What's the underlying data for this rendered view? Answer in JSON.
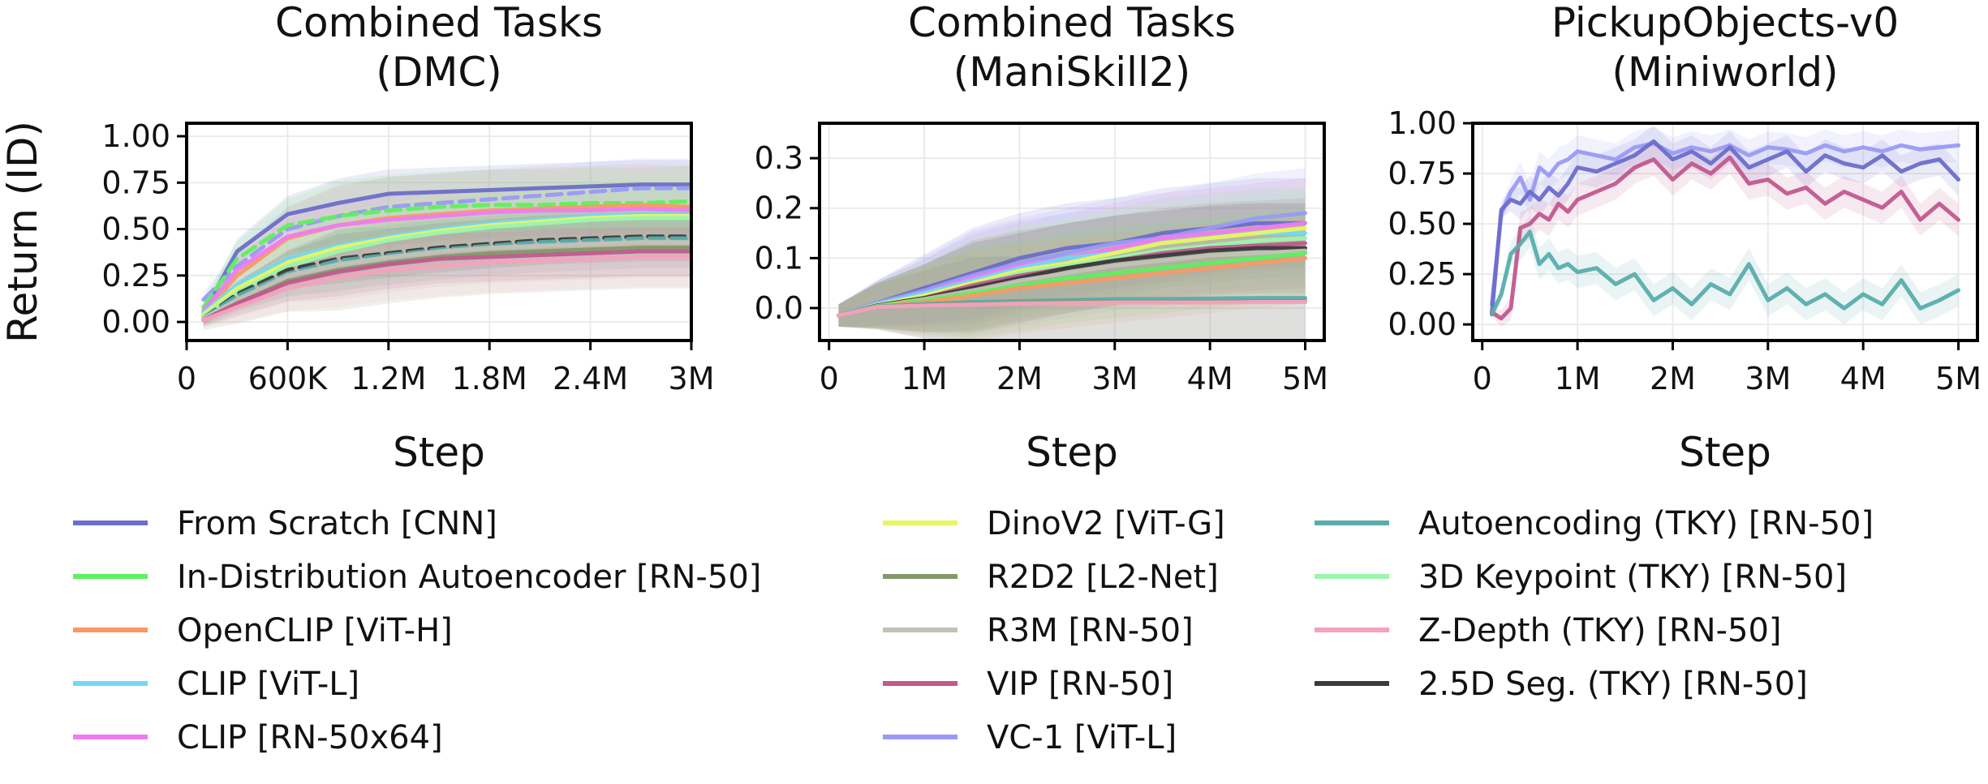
{
  "chart_data": [
    {
      "type": "line",
      "title": "Combined Tasks\n(DMC)",
      "xlabel": "Step",
      "ylabel": "Return (ID)",
      "xlim": [
        0,
        3000000
      ],
      "ylim": [
        -0.1,
        1.07
      ],
      "xticks": [
        0,
        600000,
        1200000,
        1800000,
        2400000,
        3000000
      ],
      "xtick_labels": [
        "0",
        "600K",
        "1.2M",
        "1.8M",
        "2.4M",
        "3M"
      ],
      "yticks": [
        0.0,
        0.25,
        0.5,
        0.75,
        1.0
      ],
      "ytick_labels": [
        "0.00",
        "0.25",
        "0.50",
        "0.75",
        "1.00"
      ],
      "grid": true,
      "shaded_band": true,
      "x": [
        100000,
        300000,
        600000,
        900000,
        1200000,
        1500000,
        1800000,
        2100000,
        2400000,
        2700000,
        3000000
      ],
      "series": [
        {
          "name": "From Scratch [CNN]",
          "values": [
            0.05,
            0.38,
            0.58,
            0.64,
            0.69,
            0.7,
            0.71,
            0.72,
            0.73,
            0.74,
            0.74
          ]
        },
        {
          "name": "VC-1 [ViT-L]",
          "values": [
            0.12,
            0.3,
            0.5,
            0.57,
            0.62,
            0.64,
            0.66,
            0.68,
            0.7,
            0.72,
            0.72
          ]
        },
        {
          "name": "In-Distribution Autoencoder [RN-50]",
          "values": [
            0.08,
            0.34,
            0.52,
            0.57,
            0.6,
            0.62,
            0.63,
            0.63,
            0.64,
            0.64,
            0.65
          ]
        },
        {
          "name": "OpenCLIP [ViT-H]",
          "values": [
            0.04,
            0.25,
            0.45,
            0.52,
            0.56,
            0.58,
            0.6,
            0.61,
            0.62,
            0.63,
            0.62
          ]
        },
        {
          "name": "CLIP [RN-50x64]",
          "values": [
            0.06,
            0.28,
            0.46,
            0.52,
            0.55,
            0.57,
            0.59,
            0.6,
            0.6,
            0.61,
            0.6
          ]
        },
        {
          "name": "CLIP [ViT-L]",
          "values": [
            0.05,
            0.2,
            0.34,
            0.41,
            0.46,
            0.5,
            0.53,
            0.55,
            0.57,
            0.58,
            0.58
          ]
        },
        {
          "name": "DinoV2 [ViT-G]",
          "values": [
            0.04,
            0.18,
            0.32,
            0.4,
            0.45,
            0.49,
            0.52,
            0.54,
            0.56,
            0.57,
            0.57
          ]
        },
        {
          "name": "3D Keypoint (TKY) [RN-50]",
          "values": [
            0.03,
            0.16,
            0.3,
            0.38,
            0.44,
            0.48,
            0.51,
            0.53,
            0.55,
            0.56,
            0.56
          ]
        },
        {
          "name": "2.5D Seg. (TKY) [RN-50]",
          "values": [
            0.02,
            0.15,
            0.28,
            0.34,
            0.37,
            0.4,
            0.42,
            0.44,
            0.45,
            0.46,
            0.46
          ]
        },
        {
          "name": "Autoencoding (TKY) [RN-50]",
          "values": [
            0.02,
            0.14,
            0.26,
            0.33,
            0.36,
            0.39,
            0.41,
            0.43,
            0.44,
            0.45,
            0.45
          ]
        },
        {
          "name": "R3M [RN-50]",
          "values": [
            0.02,
            0.12,
            0.25,
            0.31,
            0.35,
            0.38,
            0.4,
            0.41,
            0.42,
            0.43,
            0.43
          ]
        },
        {
          "name": "R2D2 [L2-Net]",
          "values": [
            0.01,
            0.1,
            0.22,
            0.28,
            0.32,
            0.35,
            0.37,
            0.38,
            0.39,
            0.4,
            0.4
          ]
        },
        {
          "name": "VIP [RN-50]",
          "values": [
            0.01,
            0.1,
            0.21,
            0.27,
            0.31,
            0.34,
            0.35,
            0.36,
            0.37,
            0.38,
            0.38
          ]
        },
        {
          "name": "Z-Depth (TKY) [RN-50]",
          "values": [
            0.01,
            0.08,
            0.18,
            0.24,
            0.28,
            0.3,
            0.32,
            0.33,
            0.34,
            0.35,
            0.35
          ]
        }
      ]
    },
    {
      "type": "line",
      "title": "Combined Tasks\n(ManiSkill2)",
      "xlabel": "Step",
      "ylabel": "",
      "xlim": [
        -100000,
        5200000
      ],
      "ylim": [
        -0.065,
        0.37
      ],
      "xticks": [
        0,
        1000000,
        2000000,
        3000000,
        4000000,
        5000000
      ],
      "xtick_labels": [
        "0",
        "1M",
        "2M",
        "3M",
        "4M",
        "5M"
      ],
      "yticks": [
        0.0,
        0.1,
        0.2,
        0.3
      ],
      "ytick_labels": [
        "0.0",
        "0.1",
        "0.2",
        "0.3"
      ],
      "grid": true,
      "shaded_band": true,
      "x": [
        100000,
        500000,
        1000000,
        1500000,
        2000000,
        2500000,
        3000000,
        3500000,
        4000000,
        4500000,
        5000000
      ],
      "series": [
        {
          "name": "From Scratch [CNN]",
          "values": [
            -0.015,
            0.01,
            0.04,
            0.07,
            0.1,
            0.12,
            0.13,
            0.15,
            0.16,
            0.17,
            0.17
          ]
        },
        {
          "name": "VC-1 [ViT-L]",
          "values": [
            -0.015,
            0.01,
            0.035,
            0.065,
            0.09,
            0.11,
            0.13,
            0.14,
            0.16,
            0.18,
            0.19
          ]
        },
        {
          "name": "CLIP [RN-50x64]",
          "values": [
            -0.015,
            0.008,
            0.03,
            0.06,
            0.085,
            0.1,
            0.12,
            0.14,
            0.15,
            0.16,
            0.17
          ]
        },
        {
          "name": "CLIP [ViT-L]",
          "values": [
            -0.015,
            0.008,
            0.03,
            0.055,
            0.08,
            0.1,
            0.11,
            0.13,
            0.14,
            0.15,
            0.15
          ]
        },
        {
          "name": "DinoV2 [ViT-G]",
          "values": [
            -0.015,
            0.006,
            0.025,
            0.05,
            0.075,
            0.09,
            0.11,
            0.13,
            0.14,
            0.15,
            0.16
          ]
        },
        {
          "name": "3D Keypoint (TKY) [RN-50]",
          "values": [
            -0.015,
            0.005,
            0.02,
            0.045,
            0.07,
            0.085,
            0.1,
            0.115,
            0.125,
            0.135,
            0.14
          ]
        },
        {
          "name": "VIP [RN-50]",
          "values": [
            -0.015,
            0.005,
            0.02,
            0.045,
            0.065,
            0.08,
            0.095,
            0.11,
            0.12,
            0.125,
            0.13
          ]
        },
        {
          "name": "2.5D Seg. (TKY) [RN-50]",
          "values": [
            -0.015,
            0.005,
            0.02,
            0.04,
            0.06,
            0.08,
            0.095,
            0.105,
            0.115,
            0.12,
            0.12
          ]
        },
        {
          "name": "R3M [RN-50]",
          "values": [
            -0.015,
            0.004,
            0.018,
            0.035,
            0.055,
            0.07,
            0.085,
            0.095,
            0.105,
            0.11,
            0.115
          ]
        },
        {
          "name": "In-Distribution Autoencoder [RN-50]",
          "values": [
            -0.015,
            0.004,
            0.015,
            0.03,
            0.045,
            0.06,
            0.07,
            0.08,
            0.09,
            0.1,
            0.11
          ]
        },
        {
          "name": "OpenCLIP [ViT-H]",
          "values": [
            -0.015,
            0.003,
            0.012,
            0.025,
            0.04,
            0.05,
            0.06,
            0.07,
            0.08,
            0.09,
            0.1
          ]
        },
        {
          "name": "Autoencoding (TKY) [RN-50]",
          "values": [
            -0.015,
            0.003,
            0.008,
            0.012,
            0.014,
            0.016,
            0.018,
            0.018,
            0.019,
            0.02,
            0.02
          ]
        },
        {
          "name": "R2D2 [L2-Net]",
          "values": [
            -0.015,
            0.002,
            0.006,
            0.009,
            0.011,
            0.012,
            0.013,
            0.013,
            0.013,
            0.014,
            0.014
          ]
        },
        {
          "name": "Z-Depth (TKY) [RN-50]",
          "values": [
            -0.015,
            0.002,
            0.005,
            0.007,
            0.009,
            0.01,
            0.011,
            0.011,
            0.011,
            0.012,
            0.012
          ]
        }
      ]
    },
    {
      "type": "line",
      "title": "PickupObjects-v0\n(Miniworld)",
      "xlabel": "Step",
      "ylabel": "",
      "xlim": [
        -100000,
        5200000
      ],
      "ylim": [
        -0.08,
        1.0
      ],
      "xticks": [
        0,
        1000000,
        2000000,
        3000000,
        4000000,
        5000000
      ],
      "xtick_labels": [
        "0",
        "1M",
        "2M",
        "3M",
        "4M",
        "5M"
      ],
      "yticks": [
        0.0,
        0.25,
        0.5,
        0.75,
        1.0
      ],
      "ytick_labels": [
        "0.00",
        "0.25",
        "0.50",
        "0.75",
        "1.00"
      ],
      "grid": true,
      "shaded_band": true,
      "x": [
        100000,
        200000,
        300000,
        400000,
        500000,
        600000,
        700000,
        800000,
        900000,
        1000000,
        1200000,
        1400000,
        1600000,
        1800000,
        2000000,
        2200000,
        2400000,
        2600000,
        2800000,
        3000000,
        3200000,
        3400000,
        3600000,
        3800000,
        4000000,
        4200000,
        4400000,
        4600000,
        4800000,
        5000000
      ],
      "series": [
        {
          "name": "VC-1 [ViT-L]",
          "values": [
            0.1,
            0.55,
            0.66,
            0.73,
            0.62,
            0.78,
            0.74,
            0.8,
            0.82,
            0.86,
            0.84,
            0.82,
            0.88,
            0.9,
            0.85,
            0.88,
            0.86,
            0.89,
            0.84,
            0.88,
            0.87,
            0.85,
            0.89,
            0.86,
            0.88,
            0.86,
            0.89,
            0.87,
            0.88,
            0.89
          ]
        },
        {
          "name": "From Scratch [CNN]",
          "values": [
            0.05,
            0.57,
            0.62,
            0.6,
            0.66,
            0.62,
            0.68,
            0.64,
            0.7,
            0.78,
            0.76,
            0.8,
            0.84,
            0.91,
            0.82,
            0.86,
            0.8,
            0.88,
            0.78,
            0.82,
            0.86,
            0.76,
            0.84,
            0.8,
            0.78,
            0.84,
            0.76,
            0.8,
            0.82,
            0.72
          ]
        },
        {
          "name": "VIP [RN-50]",
          "values": [
            0.06,
            0.03,
            0.08,
            0.48,
            0.5,
            0.55,
            0.52,
            0.6,
            0.56,
            0.62,
            0.66,
            0.7,
            0.78,
            0.82,
            0.72,
            0.8,
            0.75,
            0.83,
            0.7,
            0.72,
            0.65,
            0.68,
            0.6,
            0.66,
            0.62,
            0.58,
            0.66,
            0.52,
            0.6,
            0.52
          ]
        },
        {
          "name": "Autoencoding (TKY) [RN-50]",
          "values": [
            0.05,
            0.15,
            0.35,
            0.4,
            0.46,
            0.3,
            0.35,
            0.28,
            0.3,
            0.26,
            0.28,
            0.2,
            0.25,
            0.12,
            0.18,
            0.1,
            0.2,
            0.15,
            0.3,
            0.12,
            0.18,
            0.1,
            0.15,
            0.08,
            0.15,
            0.1,
            0.22,
            0.08,
            0.12,
            0.17
          ]
        }
      ]
    }
  ],
  "legend": {
    "placement": "bottom",
    "columns": [
      [
        {
          "name": "From Scratch [CNN]",
          "color": "#6b6ec9",
          "dash": false
        },
        {
          "name": "In-Distribution Autoencoder [RN-50]",
          "color": "#5ef05e",
          "dash": false
        },
        {
          "name": "OpenCLIP [ViT-H]",
          "color": "#f79a66",
          "dash": false
        },
        {
          "name": "CLIP [ViT-L]",
          "color": "#73d8f7",
          "dash": false
        },
        {
          "name": "CLIP [RN-50x64]",
          "color": "#ee7cf0",
          "dash": false
        }
      ],
      [
        {
          "name": "DinoV2 [ViT-G]",
          "color": "#e9f562",
          "dash": false
        },
        {
          "name": "R2D2 [L2-Net]",
          "color": "#82996a",
          "dash": false
        },
        {
          "name": "R3M [RN-50]",
          "color": "#c2c2b6",
          "dash": false
        },
        {
          "name": "VIP [RN-50]",
          "color": "#c2588e",
          "dash": false
        },
        {
          "name": "VC-1 [ViT-L]",
          "color": "#9a9af5",
          "dash": false
        }
      ],
      [
        {
          "name": "Autoencoding (TKY) [RN-50]",
          "color": "#5aadad",
          "dash": false
        },
        {
          "name": "3D Keypoint (TKY) [RN-50]",
          "color": "#9cf5ac",
          "dash": false
        },
        {
          "name": "Z-Depth (TKY) [RN-50]",
          "color": "#f5a1bf",
          "dash": false
        },
        {
          "name": "2.5D Seg. (TKY) [RN-50]",
          "color": "#3a3a3a",
          "dash": false
        }
      ]
    ]
  },
  "colors": {
    "From Scratch [CNN]": "#6b6ec9",
    "In-Distribution Autoencoder [RN-50]": "#5ef05e",
    "OpenCLIP [ViT-H]": "#f79a66",
    "CLIP [ViT-L]": "#73d8f7",
    "CLIP [RN-50x64]": "#ee7cf0",
    "DinoV2 [ViT-G]": "#e9f562",
    "R2D2 [L2-Net]": "#82996a",
    "R3M [RN-50]": "#c2c2b6",
    "VIP [RN-50]": "#c2588e",
    "VC-1 [ViT-L]": "#9a9af5",
    "Autoencoding (TKY) [RN-50]": "#5aadad",
    "3D Keypoint (TKY) [RN-50]": "#9cf5ac",
    "Z-Depth (TKY) [RN-50]": "#f5a1bf",
    "2.5D Seg. (TKY) [RN-50]": "#3a3a3a"
  },
  "dashed_series_dmc": [
    "VC-1 [ViT-L]",
    "In-Distribution Autoencoder [RN-50]",
    "2.5D Seg. (TKY) [RN-50]",
    "Autoencoding (TKY) [RN-50]"
  ]
}
